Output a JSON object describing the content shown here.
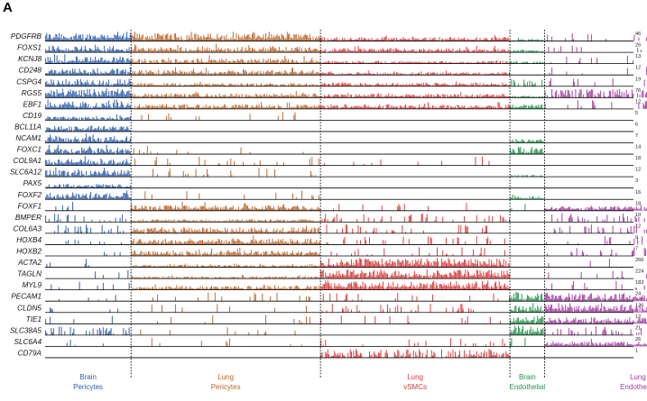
{
  "chart_data": {
    "type": "track-heatmap",
    "panel_label": "A",
    "title": "",
    "xlabel": "",
    "ylabel": "",
    "groups": [
      {
        "id": "brain_pericytes",
        "line1": "Brain",
        "line2": "Pericytes",
        "color": "#2a5ba8",
        "share": 0.146
      },
      {
        "id": "lung_pericytes",
        "line1": "Lung",
        "line2": "Pericytes",
        "color": "#b8632a",
        "share": 0.322
      },
      {
        "id": "lung_vsmcs",
        "line1": "Lung",
        "line2": "vSMCs",
        "color": "#d93a3a",
        "share": 0.322
      },
      {
        "id": "brain_endothelial",
        "line1": "Brain",
        "line2": "Endothelial",
        "color": "#22914a",
        "share": 0.059
      },
      {
        "id": "lung_endothelial",
        "line1": "Lung",
        "line2": "Endothelial",
        "color": "#a0399e",
        "share": 0.317
      }
    ],
    "genes": [
      {
        "name": "PDGFRB",
        "max": "46",
        "levels": [
          0.85,
          0.85,
          0.45,
          0.22,
          0.03
        ]
      },
      {
        "name": "FOXS1",
        "max": "26",
        "levels": [
          0.75,
          0.6,
          0.45,
          0.3,
          0.02
        ]
      },
      {
        "name": "KCNJ8",
        "max": "13",
        "levels": [
          0.8,
          0.55,
          0.3,
          0.25,
          0.02
        ]
      },
      {
        "name": "CD248",
        "max": "12",
        "levels": [
          0.75,
          0.55,
          0.3,
          0.0,
          0.03
        ]
      },
      {
        "name": "CSPG4",
        "max": "19",
        "levels": [
          0.8,
          0.35,
          0.4,
          0.1,
          0.03
        ]
      },
      {
        "name": "RGS5",
        "max": "76",
        "levels": [
          0.95,
          0.45,
          0.4,
          0.2,
          0.15
        ]
      },
      {
        "name": "EBF1",
        "max": "12",
        "levels": [
          0.8,
          0.5,
          0.5,
          0.5,
          0.03
        ]
      },
      {
        "name": "CD19",
        "max": "5",
        "levels": [
          0.4,
          0.02,
          0.0,
          0.0,
          0.0
        ]
      },
      {
        "name": "BCL11A",
        "max": "6",
        "levels": [
          0.65,
          0.0,
          0.0,
          0.0,
          0.0
        ]
      },
      {
        "name": "NCAM1",
        "max": "7",
        "levels": [
          0.7,
          0.0,
          0.0,
          0.45,
          0.0
        ]
      },
      {
        "name": "FOXC1",
        "max": "14",
        "levels": [
          0.75,
          0.02,
          0.0,
          0.8,
          0.0
        ]
      },
      {
        "name": "COL9A1",
        "max": "18",
        "levels": [
          0.7,
          0.03,
          0.02,
          0.0,
          0.0
        ]
      },
      {
        "name": "SLC6A12",
        "max": "12",
        "levels": [
          0.75,
          0.02,
          0.0,
          0.2,
          0.0
        ]
      },
      {
        "name": "PAX5",
        "max": "3",
        "levels": [
          0.45,
          0.0,
          0.0,
          0.0,
          0.0
        ]
      },
      {
        "name": "FOXF2",
        "max": "16",
        "levels": [
          0.75,
          0.02,
          0.0,
          0.4,
          0.0
        ]
      },
      {
        "name": "FOXF1",
        "max": "18",
        "levels": [
          0.02,
          0.6,
          0.02,
          0.02,
          0.5
        ]
      },
      {
        "name": "BMPER",
        "max": "10",
        "levels": [
          0.05,
          0.3,
          0.05,
          0.0,
          0.05
        ]
      },
      {
        "name": "COL6A3",
        "max": "12",
        "levels": [
          0.05,
          0.65,
          0.05,
          0.0,
          0.05
        ]
      },
      {
        "name": "HOXB4",
        "max": "9",
        "levels": [
          0.02,
          0.65,
          0.05,
          0.0,
          0.05
        ]
      },
      {
        "name": "HOXB2",
        "max": "7",
        "levels": [
          0.02,
          0.55,
          0.03,
          0.0,
          0.03
        ]
      },
      {
        "name": "ACTA2",
        "max": "266",
        "levels": [
          0.02,
          0.25,
          0.95,
          0.0,
          0.02
        ]
      },
      {
        "name": "TAGLN",
        "max": "224",
        "levels": [
          0.02,
          0.25,
          0.95,
          0.0,
          0.02
        ]
      },
      {
        "name": "MYL9",
        "max": "183",
        "levels": [
          0.02,
          0.45,
          0.95,
          0.0,
          0.02
        ]
      },
      {
        "name": "PECAM1",
        "max": "24",
        "levels": [
          0.02,
          0.03,
          0.03,
          0.9,
          0.85
        ]
      },
      {
        "name": "CLDN5",
        "max": "126",
        "levels": [
          0.02,
          0.02,
          0.03,
          0.85,
          0.85
        ]
      },
      {
        "name": "TIE1",
        "max": "12",
        "levels": [
          0.02,
          0.02,
          0.02,
          0.85,
          0.7
        ]
      },
      {
        "name": "SLC38A5",
        "max": "21",
        "levels": [
          0.1,
          0.02,
          0.0,
          0.95,
          0.05
        ]
      },
      {
        "name": "SLC6A4",
        "max": "26",
        "levels": [
          0.02,
          0.02,
          0.02,
          0.02,
          0.55
        ]
      },
      {
        "name": "CD79A",
        "max": "1",
        "levels": [
          0.0,
          0.0,
          0.15,
          0.0,
          0.0
        ]
      }
    ]
  }
}
